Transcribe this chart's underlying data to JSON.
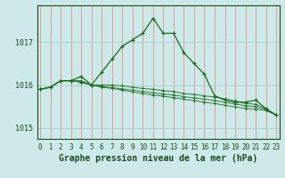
{
  "title": "Graphe pression niveau de la mer (hPa)",
  "x_labels": [
    "0",
    "1",
    "2",
    "3",
    "4",
    "5",
    "6",
    "7",
    "8",
    "9",
    "10",
    "11",
    "12",
    "13",
    "14",
    "15",
    "16",
    "17",
    "18",
    "19",
    "20",
    "21",
    "22",
    "23"
  ],
  "x_values": [
    0,
    1,
    2,
    3,
    4,
    5,
    6,
    7,
    8,
    9,
    10,
    11,
    12,
    13,
    14,
    15,
    16,
    17,
    18,
    19,
    20,
    21,
    22,
    23
  ],
  "main_series": [
    1015.9,
    1015.95,
    1016.1,
    1016.1,
    1016.2,
    1016.0,
    1016.3,
    1016.6,
    1016.9,
    1017.05,
    1017.2,
    1017.55,
    1017.2,
    1017.2,
    1016.75,
    1016.5,
    1016.25,
    1015.75,
    1015.65,
    1015.6,
    1015.6,
    1015.65,
    1015.45,
    1015.3
  ],
  "band_series": [
    [
      1015.9,
      1015.95,
      1016.1,
      1016.1,
      1016.1,
      1016.0,
      1016.0,
      1016.0,
      1015.98,
      1015.95,
      1015.92,
      1015.9,
      1015.87,
      1015.85,
      1015.8,
      1015.78,
      1015.75,
      1015.72,
      1015.68,
      1015.63,
      1015.58,
      1015.55,
      1015.45,
      1015.3
    ],
    [
      1015.9,
      1015.95,
      1016.1,
      1016.1,
      1016.08,
      1016.0,
      1015.97,
      1015.94,
      1015.91,
      1015.88,
      1015.85,
      1015.82,
      1015.79,
      1015.77,
      1015.73,
      1015.7,
      1015.67,
      1015.64,
      1015.6,
      1015.56,
      1015.52,
      1015.5,
      1015.43,
      1015.3
    ],
    [
      1015.9,
      1015.95,
      1016.1,
      1016.1,
      1016.06,
      1016.0,
      1015.95,
      1015.92,
      1015.88,
      1015.84,
      1015.8,
      1015.77,
      1015.74,
      1015.71,
      1015.67,
      1015.64,
      1015.6,
      1015.57,
      1015.53,
      1015.49,
      1015.46,
      1015.44,
      1015.41,
      1015.3
    ]
  ],
  "yticks": [
    1015,
    1016,
    1017
  ],
  "ylim": [
    1014.75,
    1017.85
  ],
  "xlim": [
    -0.3,
    23.3
  ],
  "line_color": "#1a6b1a",
  "bg_color": "#cce8e8",
  "grid_color_x": "#e88080",
  "grid_color_y": "#a0c8c8",
  "label_color": "#1a4a1a",
  "title_fontsize": 7.0,
  "axis_fontsize": 6.0,
  "marker": "+"
}
